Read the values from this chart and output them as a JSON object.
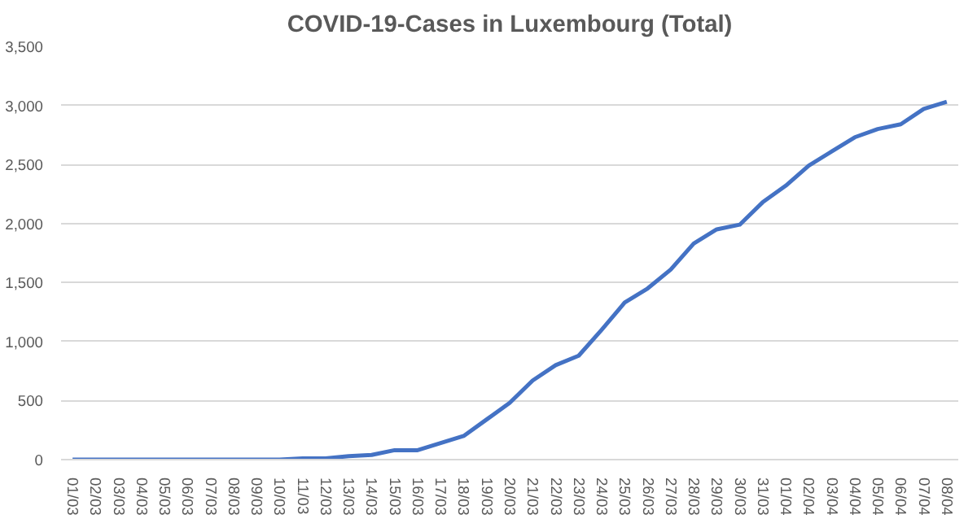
{
  "chart_data": {
    "type": "line",
    "title": "COVID-19-Cases in Luxembourg (Total)",
    "categories": [
      "01/03",
      "02/03",
      "03/03",
      "04/03",
      "05/03",
      "06/03",
      "07/03",
      "08/03",
      "09/03",
      "10/03",
      "11/03",
      "12/03",
      "13/03",
      "14/03",
      "15/03",
      "16/03",
      "17/03",
      "18/03",
      "19/03",
      "20/03",
      "21/03",
      "22/03",
      "23/03",
      "24/03",
      "25/03",
      "26/03",
      "27/03",
      "28/03",
      "29/03",
      "30/03",
      "31/03",
      "01/04",
      "02/04",
      "03/04",
      "04/04",
      "05/04",
      "06/04",
      "07/04",
      "08/04"
    ],
    "series": [
      {
        "color": "#4472c4",
        "values": [
          0,
          0,
          0,
          0,
          0,
          0,
          0,
          0,
          0,
          0,
          10,
          10,
          30,
          40,
          80,
          80,
          140,
          200,
          340,
          480,
          670,
          800,
          880,
          1100,
          1330,
          1450,
          1610,
          1830,
          1950,
          1990,
          2180,
          2320,
          2490,
          2610,
          2730,
          2800,
          2840,
          2970,
          3030
        ]
      }
    ],
    "ylim": [
      0,
      3500
    ],
    "yticks": [
      {
        "value": 0,
        "label": "0"
      },
      {
        "value": 500,
        "label": "500"
      },
      {
        "value": 1000,
        "label": "1,000"
      },
      {
        "value": 1500,
        "label": "1,500"
      },
      {
        "value": 2000,
        "label": "2,000"
      },
      {
        "value": 2500,
        "label": "2,500"
      },
      {
        "value": 3000,
        "label": "3,000"
      },
      {
        "value": 3500,
        "label": "3,500"
      }
    ],
    "grid": "y",
    "marker": "none",
    "line_style": "solid"
  }
}
